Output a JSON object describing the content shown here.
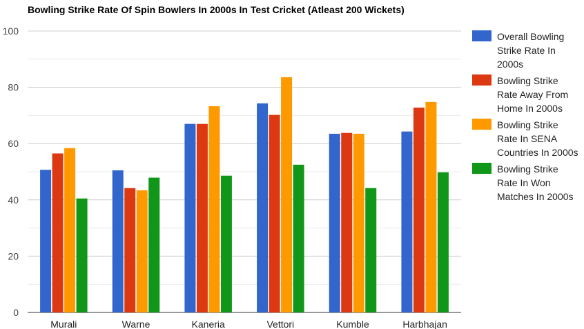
{
  "chart_data": {
    "type": "bar",
    "title": "Bowling Strike Rate Of Spin Bowlers In 2000s In Test Cricket (Atleast 200 Wickets)",
    "categories": [
      "Murali",
      "Warne",
      "Kaneria",
      "Vettori",
      "Kumble",
      "Harbhajan"
    ],
    "series": [
      {
        "name_lines": [
          "Overall Bowling",
          "Strike Rate In",
          "2000s"
        ],
        "color": "#3366cc",
        "values": [
          50.7,
          50.5,
          67.0,
          74.3,
          63.5,
          64.3
        ]
      },
      {
        "name_lines": [
          "Bowling Strike",
          "Rate Away From",
          "Home In 2000s"
        ],
        "color": "#dc3912",
        "values": [
          56.5,
          44.2,
          67.0,
          70.2,
          63.8,
          72.8
        ]
      },
      {
        "name_lines": [
          "Bowling Strike",
          "Rate In SENA",
          "Countries In 2000s"
        ],
        "color": "#ff9900",
        "values": [
          58.4,
          43.4,
          73.3,
          83.6,
          63.5,
          74.8
        ]
      },
      {
        "name_lines": [
          "Bowling Strike",
          "Rate In Won",
          "Matches In 2000s"
        ],
        "color": "#109618",
        "values": [
          40.5,
          47.9,
          48.6,
          52.5,
          44.2,
          49.8
        ]
      }
    ],
    "y_ticks": [
      "0",
      "20",
      "40",
      "60",
      "80",
      "100"
    ],
    "ylim": [
      0,
      100
    ],
    "grid": true,
    "legend_position": "right"
  }
}
